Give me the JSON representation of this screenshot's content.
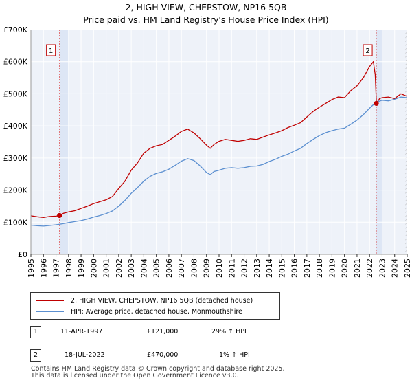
{
  "chart_data": {
    "type": "line",
    "title": "2, HIGH VIEW, CHEPSTOW, NP16 5QB",
    "subtitle": "Price paid vs. HM Land Registry's House Price Index (HPI)",
    "xlabel": "",
    "ylabel": "",
    "xlim": [
      1995,
      2025
    ],
    "ylim": [
      0,
      700000
    ],
    "yticks": [
      0,
      100000,
      200000,
      300000,
      400000,
      500000,
      600000,
      700000
    ],
    "ytick_labels": [
      "£0",
      "£100K",
      "£200K",
      "£300K",
      "£400K",
      "£500K",
      "£600K",
      "£700K"
    ],
    "xticks": [
      "1995",
      "1996",
      "1997",
      "1998",
      "1999",
      "2000",
      "2001",
      "2002",
      "2003",
      "2004",
      "2005",
      "2006",
      "2007",
      "2008",
      "2009",
      "2010",
      "2011",
      "2012",
      "2013",
      "2014",
      "2015",
      "2016",
      "2017",
      "2018",
      "2019",
      "2020",
      "2021",
      "2022",
      "2023",
      "2024",
      "2025"
    ],
    "grid": true,
    "series": [
      {
        "name": "2, HIGH VIEW, CHEPSTOW, NP16 5QB (detached house)",
        "color": "#c00000",
        "x": [
          1995.0,
          1995.5,
          1996.0,
          1996.5,
          1997.0,
          1997.28,
          1997.6,
          1998.0,
          1998.5,
          1999.0,
          1999.5,
          2000.0,
          2000.5,
          2001.0,
          2001.5,
          2002.0,
          2002.5,
          2003.0,
          2003.5,
          2004.0,
          2004.5,
          2005.0,
          2005.5,
          2006.0,
          2006.5,
          2007.0,
          2007.5,
          2008.0,
          2008.5,
          2009.0,
          2009.3,
          2009.6,
          2010.0,
          2010.5,
          2011.0,
          2011.5,
          2012.0,
          2012.5,
          2013.0,
          2013.5,
          2014.0,
          2014.5,
          2015.0,
          2015.5,
          2016.0,
          2016.5,
          2017.0,
          2017.5,
          2018.0,
          2018.5,
          2019.0,
          2019.5,
          2020.0,
          2020.5,
          2021.0,
          2021.5,
          2022.0,
          2022.3,
          2022.45,
          2022.55,
          2022.8,
          2023.0,
          2023.5,
          2024.0,
          2024.5,
          2025.0
        ],
        "y": [
          120000,
          117000,
          115000,
          118000,
          119000,
          121000,
          128000,
          132000,
          136000,
          143000,
          150000,
          158000,
          164000,
          170000,
          180000,
          205000,
          228000,
          262000,
          285000,
          315000,
          330000,
          338000,
          342000,
          355000,
          368000,
          383000,
          390000,
          378000,
          360000,
          340000,
          330000,
          342000,
          352000,
          358000,
          355000,
          352000,
          355000,
          360000,
          358000,
          365000,
          372000,
          378000,
          385000,
          395000,
          402000,
          410000,
          428000,
          445000,
          458000,
          470000,
          482000,
          490000,
          488000,
          510000,
          525000,
          550000,
          585000,
          600000,
          560000,
          470000,
          485000,
          488000,
          490000,
          485000,
          500000,
          492000
        ]
      },
      {
        "name": "HPI: Average price, detached house, Monmouthshire",
        "color": "#5b8fd0",
        "x": [
          1995.0,
          1995.5,
          1996.0,
          1996.5,
          1997.0,
          1997.5,
          1998.0,
          1998.5,
          1999.0,
          1999.5,
          2000.0,
          2000.5,
          2001.0,
          2001.5,
          2002.0,
          2002.5,
          2003.0,
          2003.5,
          2004.0,
          2004.5,
          2005.0,
          2005.5,
          2006.0,
          2006.5,
          2007.0,
          2007.5,
          2008.0,
          2008.5,
          2009.0,
          2009.3,
          2009.6,
          2010.0,
          2010.5,
          2011.0,
          2011.5,
          2012.0,
          2012.5,
          2013.0,
          2013.5,
          2014.0,
          2014.5,
          2015.0,
          2015.5,
          2016.0,
          2016.5,
          2017.0,
          2017.5,
          2018.0,
          2018.5,
          2019.0,
          2019.5,
          2020.0,
          2020.5,
          2021.0,
          2021.5,
          2022.0,
          2022.5,
          2023.0,
          2023.5,
          2024.0,
          2024.5,
          2025.0
        ],
        "y": [
          91000,
          89000,
          88000,
          90000,
          92000,
          95000,
          99000,
          102000,
          105000,
          110000,
          116000,
          121000,
          127000,
          135000,
          150000,
          168000,
          190000,
          208000,
          228000,
          243000,
          252000,
          257000,
          265000,
          277000,
          290000,
          298000,
          292000,
          275000,
          255000,
          248000,
          258000,
          262000,
          268000,
          270000,
          268000,
          270000,
          274000,
          275000,
          280000,
          289000,
          296000,
          305000,
          312000,
          322000,
          330000,
          345000,
          358000,
          370000,
          379000,
          385000,
          390000,
          393000,
          405000,
          418000,
          435000,
          455000,
          473000,
          480000,
          478000,
          483000,
          490000,
          488000
        ]
      }
    ],
    "annotations": [
      {
        "label": "1",
        "date": 1997.28,
        "price": 121000
      },
      {
        "label": "2",
        "date": 2022.54,
        "price": 470000
      }
    ]
  },
  "legend": {
    "property_label": "2, HIGH VIEW, CHEPSTOW, NP16 5QB (detached house)",
    "hpi_label": "HPI: Average price, detached house, Monmouthshire"
  },
  "transactions": [
    {
      "marker": "1",
      "date": "11-APR-1997",
      "price": "£121,000",
      "hpi_change": "29% ↑ HPI"
    },
    {
      "marker": "2",
      "date": "18-JUL-2022",
      "price": "£470,000",
      "hpi_change": "1% ↑ HPI"
    }
  ],
  "footer": {
    "line1": "Contains HM Land Registry data © Crown copyright and database right 2025.",
    "line2": "This data is licensed under the Open Government Licence v3.0."
  },
  "colors": {
    "property_line": "#c00000",
    "hpi_line": "#5b8fd0",
    "plot_bg": "#eef2f9",
    "highlight_band": "#dde6f5"
  }
}
